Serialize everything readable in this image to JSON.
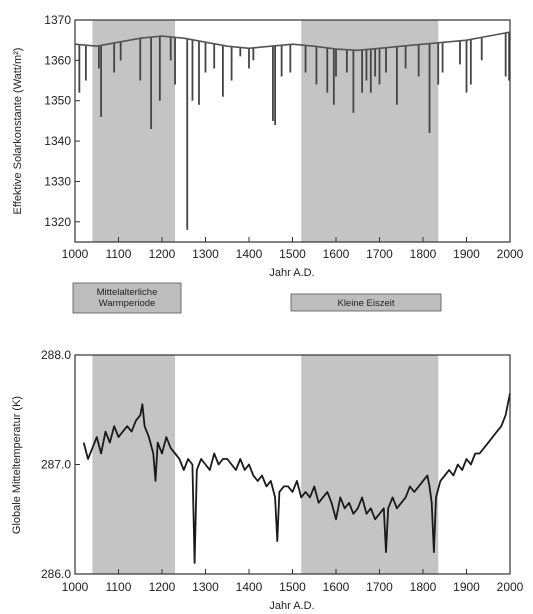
{
  "chart_data": [
    {
      "type": "line",
      "xlabel": "Jahr A.D.",
      "ylabel": "Effektive Solarkonstante (Watt/m²)",
      "xlim": [
        1000,
        2000
      ],
      "ylim": [
        1315,
        1370
      ],
      "x_ticks": [
        "1000",
        "1100",
        "1200",
        "1300",
        "1400",
        "1500",
        "1600",
        "1700",
        "1800",
        "1900",
        "2000"
      ],
      "y_ticks": [
        "1320",
        "1330",
        "1340",
        "1350",
        "1360",
        "1370"
      ],
      "shaded_ranges": [
        [
          1040,
          1230
        ],
        [
          1520,
          1835
        ]
      ],
      "grid": false,
      "baseline": {
        "x": [
          1000,
          1050,
          1100,
          1150,
          1200,
          1250,
          1300,
          1350,
          1400,
          1450,
          1500,
          1550,
          1600,
          1650,
          1700,
          1750,
          1800,
          1850,
          1900,
          1950,
          2000
        ],
        "y": [
          1364,
          1363.5,
          1364.5,
          1365.5,
          1366,
          1365.5,
          1364.5,
          1363.5,
          1363,
          1363.5,
          1364,
          1363.5,
          1362.8,
          1362.5,
          1363,
          1363.5,
          1364,
          1364.5,
          1365,
          1366,
          1367
        ]
      },
      "volcanic_dips": [
        {
          "x": 1010,
          "y": 1352
        },
        {
          "x": 1025,
          "y": 1355
        },
        {
          "x": 1055,
          "y": 1358
        },
        {
          "x": 1060,
          "y": 1346
        },
        {
          "x": 1090,
          "y": 1357
        },
        {
          "x": 1105,
          "y": 1360
        },
        {
          "x": 1150,
          "y": 1355
        },
        {
          "x": 1175,
          "y": 1343
        },
        {
          "x": 1195,
          "y": 1350
        },
        {
          "x": 1220,
          "y": 1360
        },
        {
          "x": 1230,
          "y": 1354
        },
        {
          "x": 1258,
          "y": 1318
        },
        {
          "x": 1270,
          "y": 1350
        },
        {
          "x": 1285,
          "y": 1349
        },
        {
          "x": 1300,
          "y": 1357
        },
        {
          "x": 1320,
          "y": 1358
        },
        {
          "x": 1340,
          "y": 1351
        },
        {
          "x": 1360,
          "y": 1355
        },
        {
          "x": 1380,
          "y": 1361
        },
        {
          "x": 1400,
          "y": 1358
        },
        {
          "x": 1410,
          "y": 1360
        },
        {
          "x": 1455,
          "y": 1345
        },
        {
          "x": 1460,
          "y": 1344
        },
        {
          "x": 1475,
          "y": 1356
        },
        {
          "x": 1495,
          "y": 1357
        },
        {
          "x": 1530,
          "y": 1357
        },
        {
          "x": 1555,
          "y": 1354
        },
        {
          "x": 1580,
          "y": 1352
        },
        {
          "x": 1595,
          "y": 1349
        },
        {
          "x": 1600,
          "y": 1356
        },
        {
          "x": 1625,
          "y": 1357
        },
        {
          "x": 1640,
          "y": 1347
        },
        {
          "x": 1660,
          "y": 1352
        },
        {
          "x": 1670,
          "y": 1355
        },
        {
          "x": 1680,
          "y": 1352
        },
        {
          "x": 1690,
          "y": 1356
        },
        {
          "x": 1700,
          "y": 1354
        },
        {
          "x": 1715,
          "y": 1357
        },
        {
          "x": 1740,
          "y": 1349
        },
        {
          "x": 1760,
          "y": 1358
        },
        {
          "x": 1790,
          "y": 1356
        },
        {
          "x": 1815,
          "y": 1342
        },
        {
          "x": 1835,
          "y": 1354
        },
        {
          "x": 1845,
          "y": 1357
        },
        {
          "x": 1885,
          "y": 1359
        },
        {
          "x": 1900,
          "y": 1352
        },
        {
          "x": 1910,
          "y": 1354
        },
        {
          "x": 1935,
          "y": 1360
        },
        {
          "x": 1990,
          "y": 1356
        },
        {
          "x": 1998,
          "y": 1355
        }
      ]
    },
    {
      "type": "line",
      "xlabel": "Jahr A.D.",
      "ylabel": "Globale Mitteltemperatur (K)",
      "xlim": [
        1000,
        2000
      ],
      "ylim": [
        286.0,
        288.0
      ],
      "x_ticks": [
        "1000",
        "1100",
        "1200",
        "1300",
        "1400",
        "1500",
        "1600",
        "1700",
        "1800",
        "1900",
        "2000"
      ],
      "y_ticks": [
        "286.0",
        "287.0",
        "288.0"
      ],
      "shaded_ranges": [
        [
          1040,
          1230
        ],
        [
          1520,
          1835
        ]
      ],
      "grid": false,
      "series": [
        {
          "x": [
            1020,
            1030,
            1040,
            1050,
            1060,
            1070,
            1080,
            1090,
            1100,
            1110,
            1120,
            1130,
            1140,
            1150,
            1155,
            1160,
            1170,
            1180,
            1185,
            1190,
            1200,
            1210,
            1220,
            1230,
            1240,
            1250,
            1260,
            1270,
            1275,
            1280,
            1290,
            1300,
            1310,
            1320,
            1330,
            1340,
            1350,
            1360,
            1370,
            1380,
            1390,
            1400,
            1410,
            1420,
            1430,
            1440,
            1450,
            1460,
            1465,
            1470,
            1480,
            1490,
            1500,
            1510,
            1520,
            1530,
            1540,
            1550,
            1560,
            1570,
            1580,
            1590,
            1600,
            1610,
            1620,
            1630,
            1640,
            1650,
            1660,
            1670,
            1680,
            1690,
            1700,
            1710,
            1715,
            1720,
            1730,
            1740,
            1750,
            1760,
            1770,
            1780,
            1790,
            1800,
            1810,
            1815,
            1820,
            1825,
            1830,
            1840,
            1850,
            1860,
            1870,
            1880,
            1890,
            1900,
            1910,
            1920,
            1930,
            1940,
            1950,
            1960,
            1970,
            1980,
            1990,
            2000
          ],
          "y": [
            287.2,
            287.05,
            287.15,
            287.25,
            287.1,
            287.3,
            287.2,
            287.35,
            287.25,
            287.3,
            287.35,
            287.3,
            287.4,
            287.45,
            287.55,
            287.35,
            287.25,
            287.1,
            286.85,
            287.2,
            287.1,
            287.25,
            287.15,
            287.1,
            287.05,
            286.95,
            287.05,
            287.0,
            286.1,
            286.95,
            287.05,
            287.0,
            286.95,
            287.1,
            287.0,
            287.05,
            287.05,
            287.0,
            286.95,
            287.05,
            286.95,
            287.0,
            286.9,
            286.85,
            286.9,
            286.8,
            286.85,
            286.7,
            286.3,
            286.75,
            286.8,
            286.8,
            286.75,
            286.85,
            286.7,
            286.75,
            286.7,
            286.8,
            286.65,
            286.7,
            286.75,
            286.65,
            286.5,
            286.7,
            286.6,
            286.65,
            286.55,
            286.6,
            286.7,
            286.55,
            286.6,
            286.5,
            286.55,
            286.6,
            286.2,
            286.6,
            286.7,
            286.6,
            286.65,
            286.7,
            286.8,
            286.75,
            286.8,
            286.85,
            286.9,
            286.8,
            286.65,
            286.2,
            286.7,
            286.85,
            286.9,
            286.95,
            286.9,
            287.0,
            286.95,
            287.05,
            287.0,
            287.1,
            287.1,
            287.15,
            287.2,
            287.25,
            287.3,
            287.35,
            287.45,
            287.65
          ]
        }
      ]
    }
  ],
  "periods": {
    "medieval": "Mittelalterliche Warmperiode",
    "little_ice_age": "Kleine Eiszeit"
  }
}
